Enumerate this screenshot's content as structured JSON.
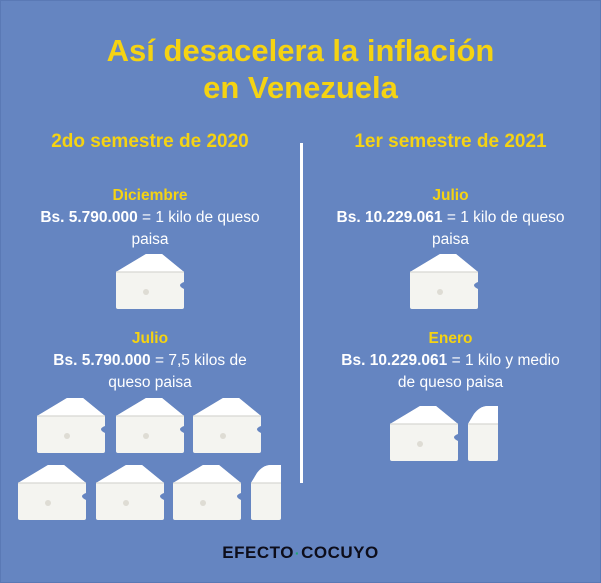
{
  "title_line1": "Así desacelera la inflación",
  "title_line2": "en Venezuela",
  "left": {
    "heading": "2do semestre de 2020",
    "upper": {
      "when": "Diciembre",
      "price": "Bs. 5.790.000",
      "rest_line1": " = 1 kilo de queso",
      "line2": "paisa"
    },
    "lower": {
      "when": "Julio",
      "price": "Bs. 5.790.000",
      "rest_line1": " = 7,5 kilos de",
      "line2": "queso paisa"
    }
  },
  "right": {
    "heading": "1er semestre de 2021",
    "upper": {
      "when": "Julio",
      "price": "Bs. 10.229.061",
      "rest_line1": " = 1 kilo de queso",
      "line2": "paisa"
    },
    "lower": {
      "when": "Enero",
      "price": "Bs. 10.229.061",
      "rest_line1": " = 1 kilo y medio",
      "line2": "de queso paisa"
    }
  },
  "quantities": {
    "left_upper_kilos": 1,
    "left_lower_kilos": 7.5,
    "right_upper_kilos": 1,
    "right_lower_kilos": 1.5
  },
  "logo": {
    "word1": "EFECTO",
    "separator": "·",
    "word2": "COCUYO"
  },
  "colors": {
    "background": "#6585c1",
    "accent": "#f5d312",
    "text": "#ffffff",
    "cheese": "#f4f4f0"
  },
  "icons": {
    "cheese": "cheese-wedge-icon",
    "half_cheese": "cheese-half-icon"
  }
}
